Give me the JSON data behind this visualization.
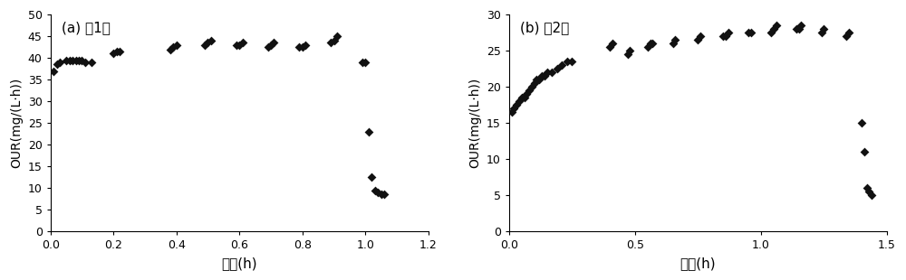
{
  "plot_a": {
    "label": "(a) 第1组",
    "xlabel": "时间(h)",
    "ylabel": "OUR(mg/(L·h))",
    "xlim": [
      0,
      1.2
    ],
    "ylim": [
      0,
      50
    ],
    "xticks": [
      0,
      0.2,
      0.4,
      0.6,
      0.8,
      1.0,
      1.2
    ],
    "yticks": [
      0,
      5,
      10,
      15,
      20,
      25,
      30,
      35,
      40,
      45,
      50
    ],
    "x": [
      0.01,
      0.02,
      0.03,
      0.05,
      0.06,
      0.07,
      0.08,
      0.09,
      0.1,
      0.11,
      0.13,
      0.2,
      0.21,
      0.22,
      0.38,
      0.39,
      0.4,
      0.49,
      0.5,
      0.51,
      0.59,
      0.6,
      0.61,
      0.69,
      0.7,
      0.71,
      0.79,
      0.8,
      0.81,
      0.89,
      0.9,
      0.91,
      0.99,
      1.0,
      1.01,
      1.02,
      1.03,
      1.04,
      1.05,
      1.06
    ],
    "y": [
      37.0,
      38.5,
      39.0,
      39.5,
      39.5,
      39.5,
      39.5,
      39.5,
      39.5,
      39.0,
      39.0,
      41.0,
      41.5,
      41.5,
      42.0,
      42.5,
      43.0,
      43.0,
      43.5,
      44.0,
      43.0,
      43.0,
      43.5,
      42.5,
      43.0,
      43.5,
      42.5,
      42.5,
      43.0,
      43.5,
      44.0,
      45.0,
      39.0,
      39.0,
      23.0,
      12.5,
      9.5,
      9.0,
      8.5,
      8.5
    ]
  },
  "plot_b": {
    "label": "(b) 第2组",
    "xlabel": "时间(h)",
    "ylabel": "OUR(mg/(L·h))",
    "xlim": [
      0,
      1.5
    ],
    "ylim": [
      0,
      30
    ],
    "xticks": [
      0,
      0.5,
      1.0,
      1.5
    ],
    "yticks": [
      0,
      5,
      10,
      15,
      20,
      25,
      30
    ],
    "x": [
      0.01,
      0.02,
      0.03,
      0.04,
      0.05,
      0.06,
      0.07,
      0.08,
      0.09,
      0.1,
      0.11,
      0.12,
      0.13,
      0.14,
      0.15,
      0.17,
      0.19,
      0.21,
      0.23,
      0.25,
      0.4,
      0.41,
      0.47,
      0.48,
      0.55,
      0.56,
      0.57,
      0.65,
      0.66,
      0.75,
      0.76,
      0.85,
      0.86,
      0.87,
      0.95,
      0.96,
      1.04,
      1.05,
      1.06,
      1.14,
      1.15,
      1.16,
      1.24,
      1.25,
      1.34,
      1.35,
      1.4,
      1.41,
      1.42,
      1.43,
      1.44
    ],
    "y": [
      16.5,
      17.0,
      17.5,
      18.0,
      18.5,
      18.5,
      19.0,
      19.5,
      20.0,
      20.5,
      21.0,
      21.0,
      21.5,
      21.5,
      22.0,
      22.0,
      22.5,
      23.0,
      23.5,
      23.5,
      25.5,
      26.0,
      24.5,
      25.0,
      25.5,
      26.0,
      26.0,
      26.0,
      26.5,
      26.5,
      27.0,
      27.0,
      27.0,
      27.5,
      27.5,
      27.5,
      27.5,
      28.0,
      28.5,
      28.0,
      28.0,
      28.5,
      27.5,
      28.0,
      27.0,
      27.5,
      15.0,
      11.0,
      6.0,
      5.5,
      5.0
    ]
  },
  "marker": "D",
  "markersize": 5,
  "color": "#111111",
  "bg_color": "#ffffff",
  "figsize": [
    10.0,
    3.1
  ],
  "dpi": 100
}
